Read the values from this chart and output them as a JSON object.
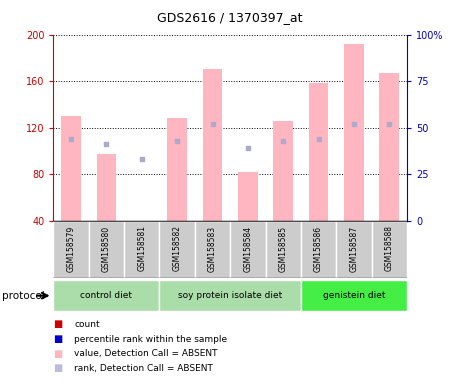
{
  "title": "GDS2616 / 1370397_at",
  "samples": [
    "GSM158579",
    "GSM158580",
    "GSM158581",
    "GSM158582",
    "GSM158583",
    "GSM158584",
    "GSM158585",
    "GSM158586",
    "GSM158587",
    "GSM158588"
  ],
  "bar_values": [
    130,
    97,
    40,
    128,
    170,
    82,
    126,
    158,
    192,
    167
  ],
  "rank_values": [
    44,
    41,
    33,
    43,
    52,
    39,
    43,
    44,
    52,
    52
  ],
  "bar_color": "#FFB6C1",
  "rank_color": "#AAAACC",
  "ylim_left": [
    40,
    200
  ],
  "ylim_right": [
    0,
    100
  ],
  "yticks_left": [
    40,
    80,
    120,
    160,
    200
  ],
  "yticks_right": [
    0,
    25,
    50,
    75,
    100
  ],
  "ytick_labels_left": [
    "40",
    "80",
    "120",
    "160",
    "200"
  ],
  "ytick_labels_right": [
    "0",
    "25",
    "50",
    "75",
    "100%"
  ],
  "groups": [
    {
      "label": "control diet",
      "start": 0,
      "end": 3
    },
    {
      "label": "soy protein isolate diet",
      "start": 3,
      "end": 7
    },
    {
      "label": "genistein diet",
      "start": 7,
      "end": 10
    }
  ],
  "group_colors": [
    "#AADDAA",
    "#AADDAA",
    "#44EE44"
  ],
  "sample_bg": "#CCCCCC",
  "left_axis_color": "#CC0000",
  "right_axis_color": "#0000CC",
  "legend_items": [
    {
      "color": "#CC0000",
      "label": "count"
    },
    {
      "color": "#0000CC",
      "label": "percentile rank within the sample"
    },
    {
      "color": "#FFB6C1",
      "label": "value, Detection Call = ABSENT"
    },
    {
      "color": "#BBBBDD",
      "label": "rank, Detection Call = ABSENT"
    }
  ]
}
